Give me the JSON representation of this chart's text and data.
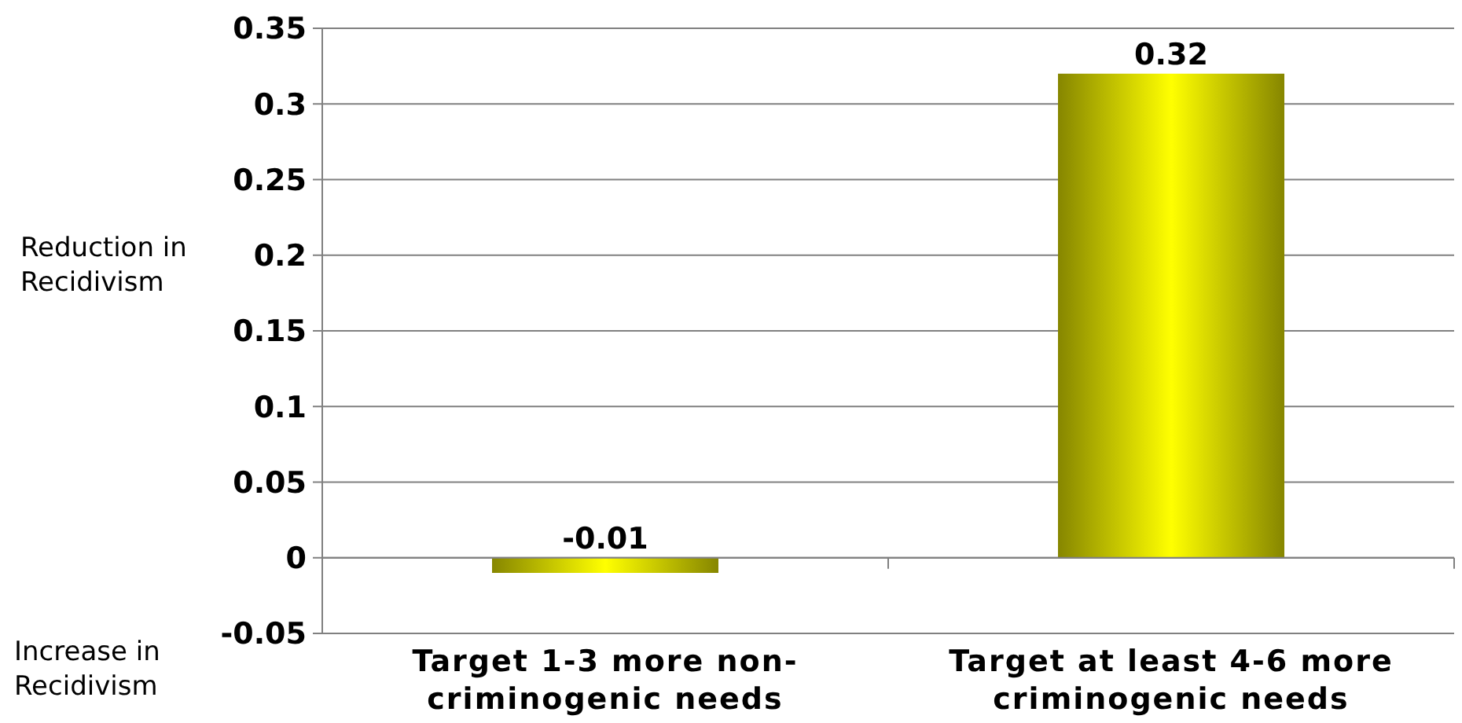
{
  "chart_data": {
    "type": "bar",
    "ylabel": "Reduction in Recidivism",
    "annotations": [
      "Increase in Recidivism"
    ],
    "categories": [
      "Target 1-3 more non-criminogenic needs",
      "Target at least 4-6 more criminogenic needs"
    ],
    "values": [
      -0.01,
      0.32
    ],
    "color": "#ffff00",
    "ylim": [
      -0.05,
      0.35
    ],
    "yticks": [
      -0.05,
      0,
      0.05,
      0.1,
      0.15,
      0.2,
      0.25,
      0.3,
      0.35
    ],
    "grid": "y",
    "data_labels": true
  }
}
